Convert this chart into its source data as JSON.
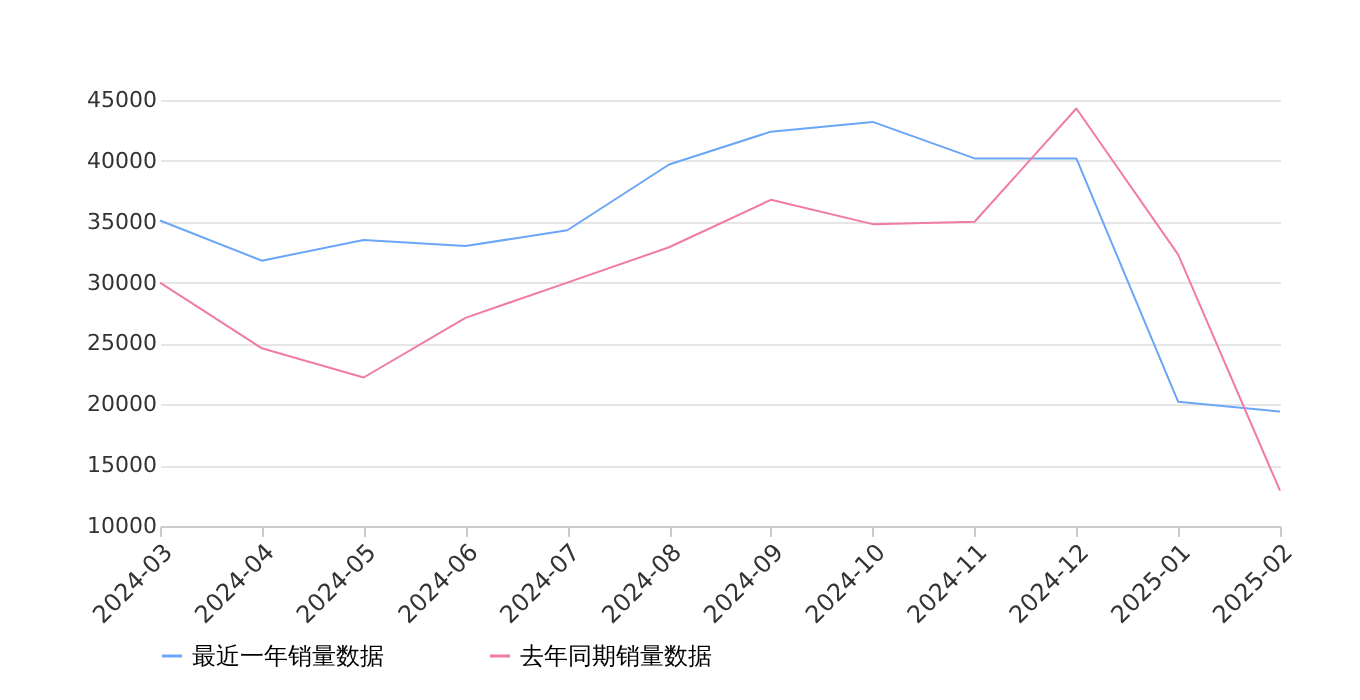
{
  "chart_data": {
    "type": "line",
    "categories": [
      "2024-03",
      "2024-04",
      "2024-05",
      "2024-06",
      "2024-07",
      "2024-08",
      "2024-09",
      "2024-10",
      "2024-11",
      "2024-12",
      "2025-01",
      "2025-02"
    ],
    "series": [
      {
        "name": "最近一年销量数据",
        "color": "#6aa6f8",
        "values": [
          35100,
          31800,
          33500,
          33000,
          34300,
          39700,
          42400,
          43200,
          40200,
          40200,
          20200,
          19400
        ]
      },
      {
        "name": "去年同期销量数据",
        "color": "#f07aa8",
        "values": [
          30000,
          24600,
          22200,
          27100,
          30000,
          32900,
          36800,
          34800,
          35000,
          44300,
          32300,
          12900
        ]
      }
    ],
    "ylim": [
      10000,
      45000
    ],
    "yticks": [
      10000,
      15000,
      20000,
      25000,
      30000,
      35000,
      40000,
      45000
    ],
    "grid": "y",
    "legend": "bottom",
    "marker": "none",
    "line_style": "solid"
  }
}
